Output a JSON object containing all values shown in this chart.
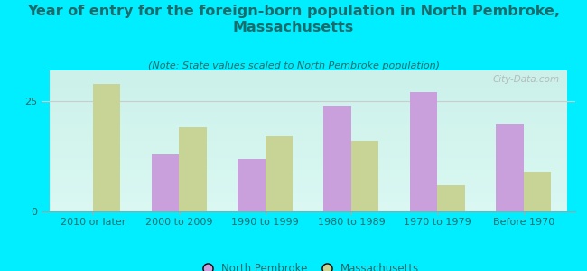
{
  "title": "Year of entry for the foreign-born population in North Pembroke,\nMassachusetts",
  "subtitle": "(Note: State values scaled to North Pembroke population)",
  "categories": [
    "2010 or later",
    "2000 to 2009",
    "1990 to 1999",
    "1980 to 1989",
    "1970 to 1979",
    "Before 1970"
  ],
  "north_pembroke": [
    0,
    13,
    12,
    24,
    27,
    20
  ],
  "massachusetts": [
    29,
    19,
    17,
    16,
    6,
    9
  ],
  "bar_color_np": "#c9a0dc",
  "bar_color_ma": "#c8d496",
  "background_outer": "#00eeff",
  "background_plot_top": "#f0f8ec",
  "background_plot_bottom": "#e8f5f0",
  "grid_color": "#dddddd",
  "text_color": "#1a6b6b",
  "ylabel_ticks": [
    0,
    25
  ],
  "ylim": [
    0,
    32
  ],
  "legend_np": "North Pembroke",
  "legend_ma": "Massachusetts",
  "watermark": "City-Data.com",
  "title_fontsize": 11.5,
  "subtitle_fontsize": 8,
  "tick_fontsize": 8,
  "legend_fontsize": 8.5
}
